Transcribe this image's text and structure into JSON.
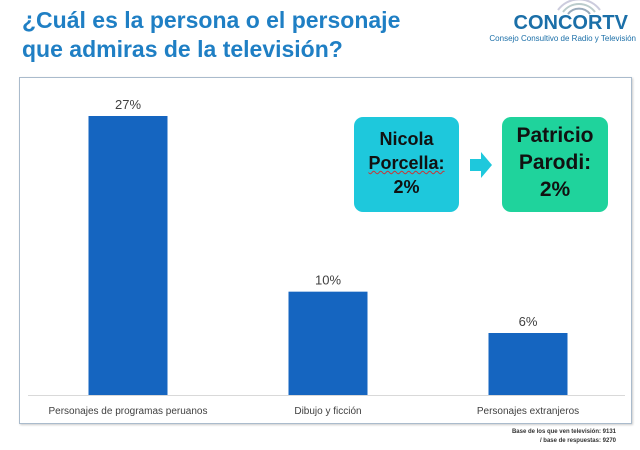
{
  "title": [
    "¿Cuál es la persona o el personaje",
    "que admiras de la televisión?"
  ],
  "logo": {
    "name": "CONCORTV",
    "subtitle": "Consejo Consultivo de Radio y Televisión"
  },
  "chart_data": {
    "type": "bar",
    "categories": [
      "Personajes de programas peruanos",
      "Dibujo y ficción",
      "Personajes extranjeros"
    ],
    "values": [
      27,
      10,
      6
    ],
    "data_labels": [
      "27%",
      "10%",
      "6%"
    ],
    "ylim": [
      0,
      30
    ],
    "grid": false,
    "bar_color": "#1565c0"
  },
  "callouts": {
    "first": {
      "lines": [
        "Nicola",
        "Porcella:",
        "2%"
      ],
      "color": "#1ec8dc"
    },
    "second": {
      "lines": [
        "Patricio",
        "Parodi:",
        "2%"
      ],
      "color": "#1fd39c"
    },
    "arrow_icon": "arrow-right-icon"
  },
  "note": [
    "Base de los que ven televisión: 9131",
    "/ base de respuestas: 9270"
  ]
}
